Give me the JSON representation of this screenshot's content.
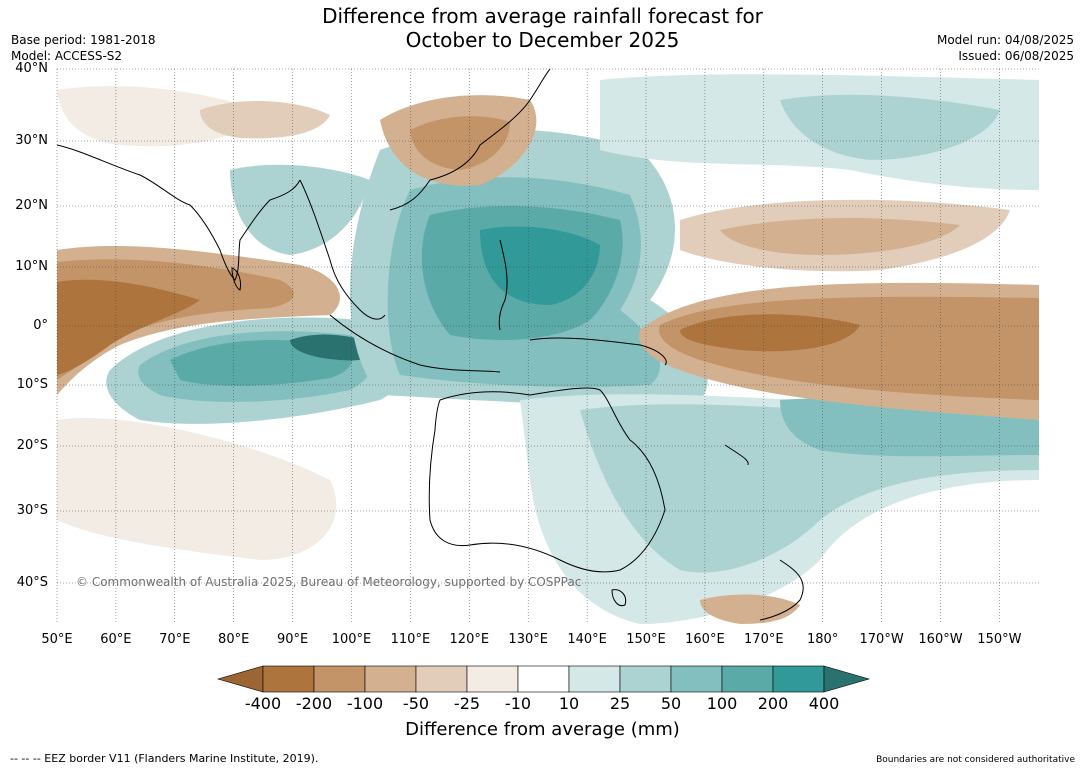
{
  "title_line1": "Difference from average rainfall forecast for",
  "title_line2": "October to December 2025",
  "meta_left": [
    "Base period: 1981-2018",
    "Model: ACCESS-S2"
  ],
  "meta_right": [
    "Model run: 04/08/2025",
    "Issued: 06/08/2025"
  ],
  "copyright": "© Commonwealth of Australia 2025, Bureau of Meteorology, supported by COSPPac",
  "lat_labels": [
    "40°N",
    "30°N",
    "20°N",
    "10°N",
    "0°",
    "10°S",
    "20°S",
    "30°S",
    "40°S"
  ],
  "lon_labels": [
    "50°E",
    "60°E",
    "70°E",
    "80°E",
    "90°E",
    "100°E",
    "110°E",
    "120°E",
    "130°E",
    "140°E",
    "150°E",
    "160°E",
    "170°E",
    "180°",
    "170°W",
    "160°W",
    "150°W"
  ],
  "legend": {
    "ticks": [
      "-400",
      "-200",
      "-100",
      "-50",
      "-25",
      "-10",
      "10",
      "25",
      "50",
      "100",
      "200",
      "400"
    ],
    "colors": [
      "#9b6633",
      "#ad743d",
      "#c29467",
      "#d3b190",
      "#e2cdbb",
      "#f2ece5",
      "#ffffff",
      "#d3e8e7",
      "#acd3d2",
      "#82bfbe",
      "#5aaaa8",
      "#319a99",
      "#2a7270"
    ],
    "label": "Difference from average (mm)"
  },
  "footer_left": "--  --  -- EEZ border V11 (Flanders Marine Institute, 2019).",
  "footer_right": "Boundaries are not considered authoritative"
}
